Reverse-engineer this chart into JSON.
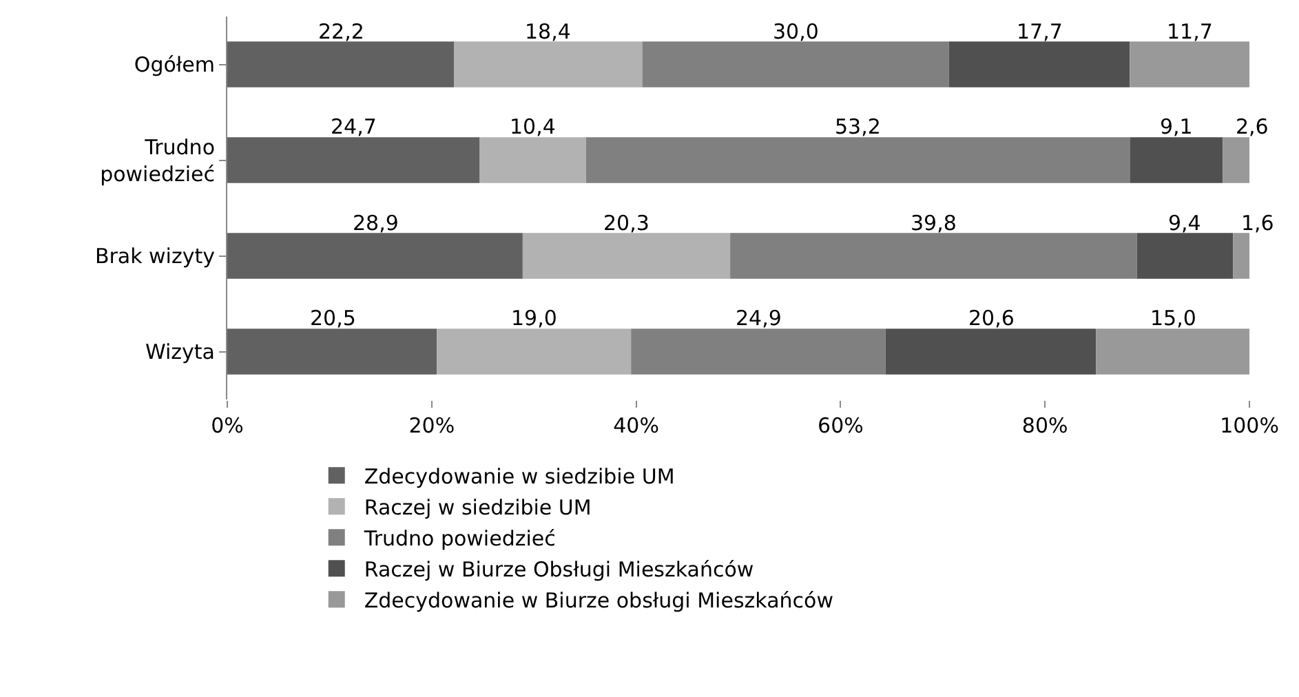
{
  "chart_data": {
    "type": "bar",
    "orientation": "horizontal",
    "stacked": true,
    "categories": [
      "Ogółem",
      "Trudno powiedzieć",
      "Brak wizyty",
      "Wizyta"
    ],
    "series": [
      {
        "name": "Zdecydowanie w siedzibie UM",
        "color": "#616161",
        "values": [
          22.2,
          24.7,
          28.9,
          20.5
        ],
        "value_labels": [
          "22,2",
          "24,7",
          "28,9",
          "20,5"
        ]
      },
      {
        "name": "Raczej w siedzibie UM",
        "color": "#b2b2b2",
        "values": [
          18.4,
          10.4,
          20.3,
          19.0
        ],
        "value_labels": [
          "18,4",
          "10,4",
          "20,3",
          "19,0"
        ]
      },
      {
        "name": "Trudno powiedzieć",
        "color": "#808080",
        "values": [
          30.0,
          53.2,
          39.8,
          24.9
        ],
        "value_labels": [
          "30,0",
          "53,2",
          "39,8",
          "24,9"
        ]
      },
      {
        "name": "Raczej w Biurze Obsługi Mieszkańców",
        "color": "#505050",
        "values": [
          17.7,
          9.1,
          9.4,
          20.6
        ],
        "value_labels": [
          "17,7",
          "9,1",
          "9,4",
          "20,6"
        ]
      },
      {
        "name": "Zdecydowanie w Biurze obsługi Mieszkańców",
        "color": "#999999",
        "values": [
          11.7,
          2.6,
          1.6,
          15.0
        ],
        "value_labels": [
          "11,7",
          "2,6",
          "1,6",
          "15,0"
        ]
      }
    ],
    "xlim": [
      0,
      100
    ],
    "xticks": [
      {
        "value": 0,
        "label": "0%"
      },
      {
        "value": 20,
        "label": "20%"
      },
      {
        "value": 40,
        "label": "40%"
      },
      {
        "value": 60,
        "label": "60%"
      },
      {
        "value": 80,
        "label": "80%"
      },
      {
        "value": 100,
        "label": "100%"
      }
    ],
    "legend": "bottom"
  }
}
